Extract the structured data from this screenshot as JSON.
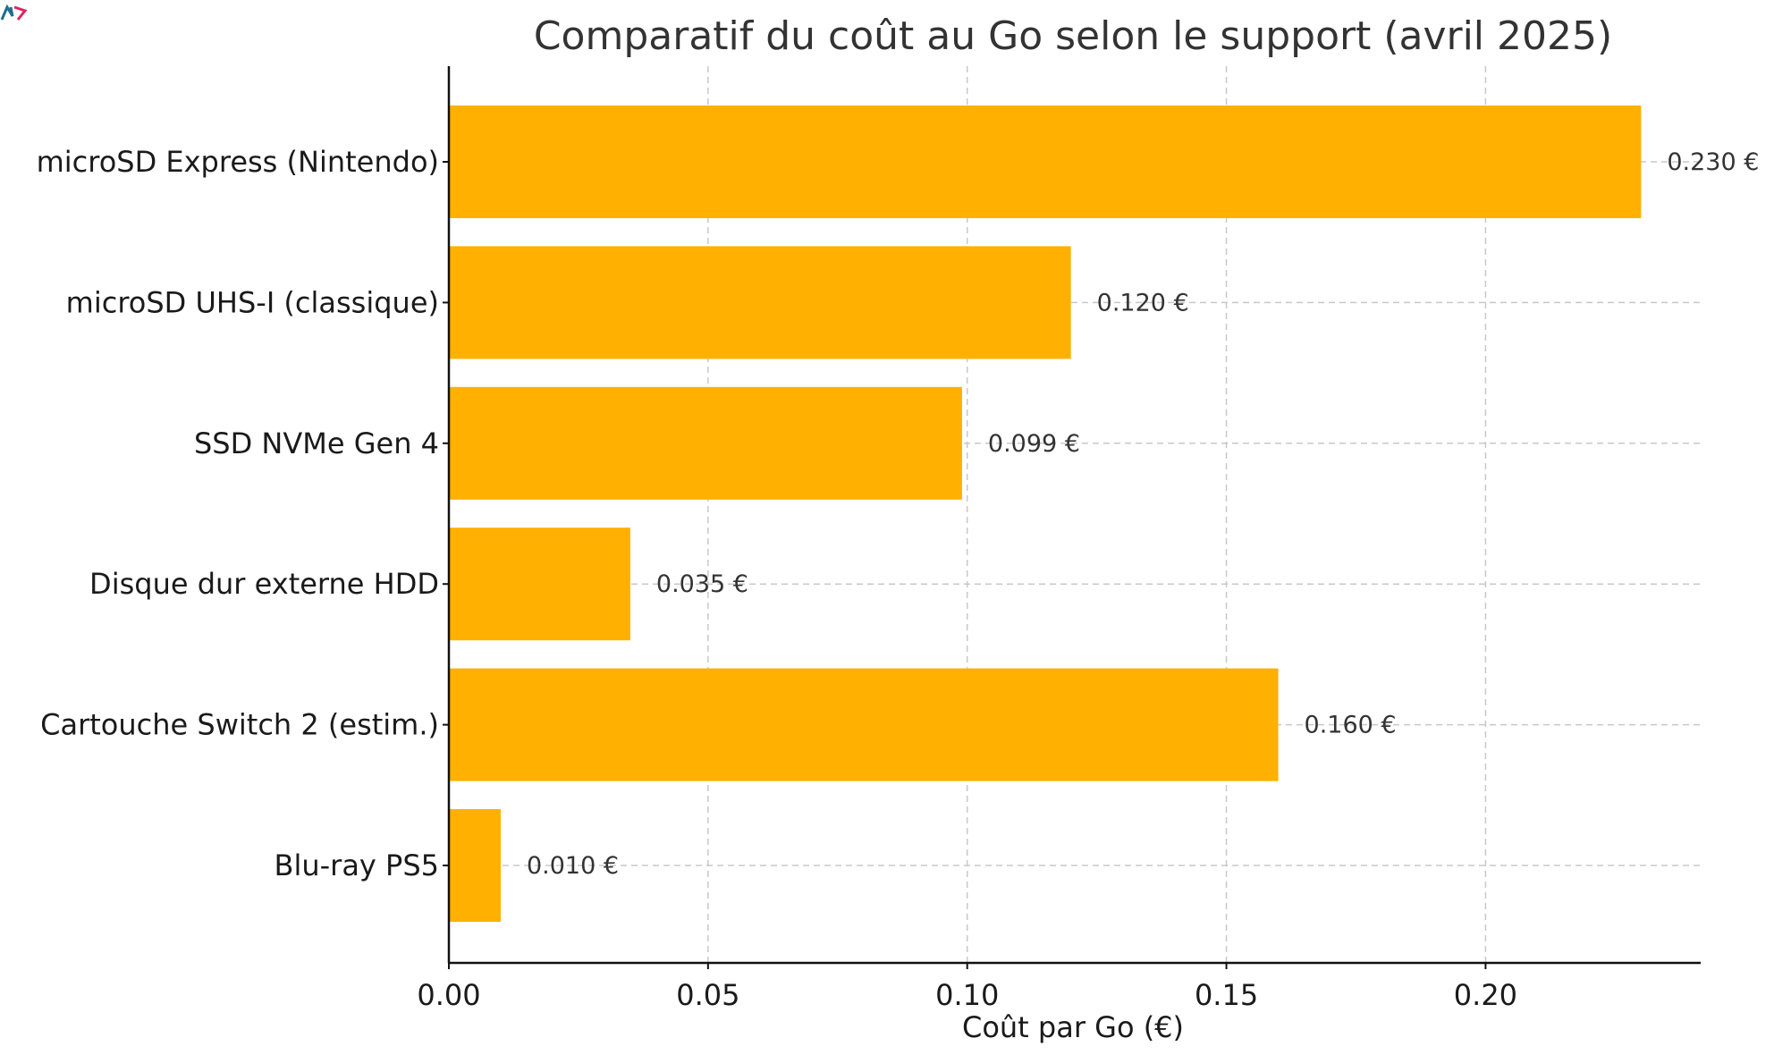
{
  "logo": {
    "name": "logo",
    "colors": [
      "#1f6f8b",
      "#e0245e"
    ]
  },
  "chart_data": {
    "type": "bar",
    "orientation": "horizontal",
    "title": "Comparatif du coût au Go selon le support (avril 2025)",
    "xlabel": "Coût par Go (€)",
    "ylabel": "",
    "categories": [
      "microSD Express (Nintendo)",
      "microSD UHS-I (classique)",
      "SSD NVMe Gen 4",
      "Disque dur externe HDD",
      "Cartouche Switch 2 (estim.)",
      "Blu-ray PS5"
    ],
    "values": [
      0.23,
      0.12,
      0.099,
      0.035,
      0.16,
      0.01
    ],
    "value_labels": [
      "0.230 €",
      "0.120 €",
      "0.099 €",
      "0.035 €",
      "0.160 €",
      "0.010 €"
    ],
    "xticks": [
      0.0,
      0.05,
      0.1,
      0.15,
      0.2
    ],
    "xtick_labels": [
      "0.00",
      "0.05",
      "0.10",
      "0.15",
      "0.20"
    ],
    "xlim": [
      0,
      0.2415
    ],
    "grid": true,
    "bar_color": "#ffb000"
  }
}
